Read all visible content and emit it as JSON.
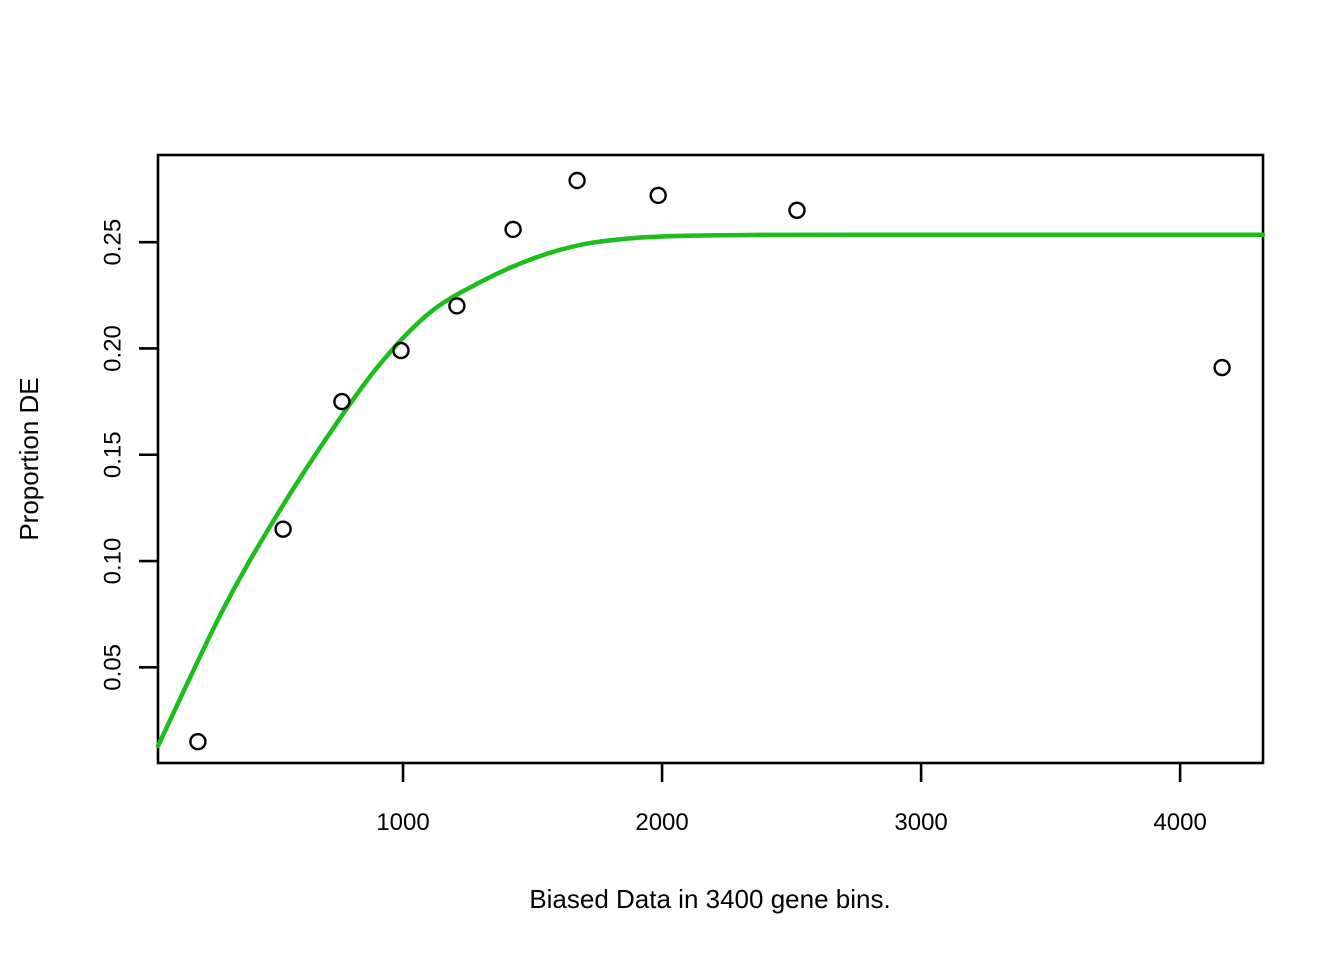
{
  "figure": {
    "background_color": "#ffffff",
    "frame_color": "#000000",
    "point_color": "#000000",
    "curve_color": "#1BBE1B"
  },
  "chart_data": {
    "type": "scatter",
    "title": "",
    "xlabel": "Biased Data in 3400 gene bins.",
    "ylabel": "Proportion DE",
    "xlim": [
      54,
      4320
    ],
    "ylim": [
      0.005,
      0.291
    ],
    "grid": false,
    "legend": "none",
    "x_ticks": [
      {
        "v": 1000,
        "label": "1000"
      },
      {
        "v": 2000,
        "label": "2000"
      },
      {
        "v": 3000,
        "label": "3000"
      },
      {
        "v": 4000,
        "label": "4000"
      }
    ],
    "y_ticks": [
      {
        "v": 0.05,
        "label": "0.05"
      },
      {
        "v": 0.1,
        "label": "0.10"
      },
      {
        "v": 0.15,
        "label": "0.15"
      },
      {
        "v": 0.2,
        "label": "0.20"
      },
      {
        "v": 0.25,
        "label": "0.25"
      }
    ],
    "series": [
      {
        "name": "binned proportion DE points",
        "kind": "scatter",
        "marker": "open-circle",
        "color": "#000000",
        "points": [
          [
            208,
            0.015
          ],
          [
            537,
            0.115
          ],
          [
            764,
            0.175
          ],
          [
            992,
            0.199
          ],
          [
            1208,
            0.22
          ],
          [
            1425,
            0.256
          ],
          [
            1672,
            0.279
          ],
          [
            1985,
            0.272
          ],
          [
            2521,
            0.265
          ],
          [
            4162,
            0.191
          ]
        ]
      },
      {
        "name": "fitted saturation curve",
        "kind": "line",
        "color": "#1BBE1B",
        "asymptote": 0.2535,
        "points": [
          [
            54,
            0.013
          ],
          [
            300,
            0.076
          ],
          [
            500,
            0.119
          ],
          [
            700,
            0.157
          ],
          [
            900,
            0.191
          ],
          [
            1100,
            0.2165
          ],
          [
            1300,
            0.2313
          ],
          [
            1500,
            0.2422
          ],
          [
            1700,
            0.2491
          ],
          [
            1900,
            0.252
          ],
          [
            2100,
            0.253
          ],
          [
            2400,
            0.2534
          ],
          [
            2800,
            0.2535
          ],
          [
            3300,
            0.2535
          ],
          [
            3800,
            0.2535
          ],
          [
            4320,
            0.2535
          ]
        ]
      }
    ]
  }
}
